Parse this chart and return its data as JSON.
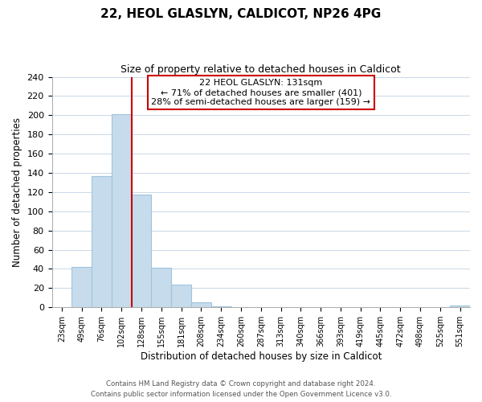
{
  "title": "22, HEOL GLASLYN, CALDICOT, NP26 4PG",
  "subtitle": "Size of property relative to detached houses in Caldicot",
  "xlabel": "Distribution of detached houses by size in Caldicot",
  "ylabel": "Number of detached properties",
  "bar_labels": [
    "23sqm",
    "49sqm",
    "76sqm",
    "102sqm",
    "128sqm",
    "155sqm",
    "181sqm",
    "208sqm",
    "234sqm",
    "260sqm",
    "287sqm",
    "313sqm",
    "340sqm",
    "366sqm",
    "393sqm",
    "419sqm",
    "445sqm",
    "472sqm",
    "498sqm",
    "525sqm",
    "551sqm"
  ],
  "bar_values": [
    0,
    42,
    137,
    201,
    117,
    41,
    24,
    5,
    1,
    0,
    0,
    0,
    0,
    0,
    0,
    0,
    0,
    0,
    0,
    0,
    2
  ],
  "bar_color": "#c6dcec",
  "bar_edge_color": "#a0c4dc",
  "vline_color": "#cc0000",
  "vline_x_index": 3.5,
  "ylim": [
    0,
    240
  ],
  "yticks": [
    0,
    20,
    40,
    60,
    80,
    100,
    120,
    140,
    160,
    180,
    200,
    220,
    240
  ],
  "annotation_title": "22 HEOL GLASLYN: 131sqm",
  "annotation_line1": "← 71% of detached houses are smaller (401)",
  "annotation_line2": "28% of semi-detached houses are larger (159) →",
  "annotation_box_color": "#ffffff",
  "annotation_box_edge": "#cc0000",
  "footer1": "Contains HM Land Registry data © Crown copyright and database right 2024.",
  "footer2": "Contains public sector information licensed under the Open Government Licence v3.0.",
  "background_color": "#ffffff",
  "grid_color": "#c8d8e8"
}
